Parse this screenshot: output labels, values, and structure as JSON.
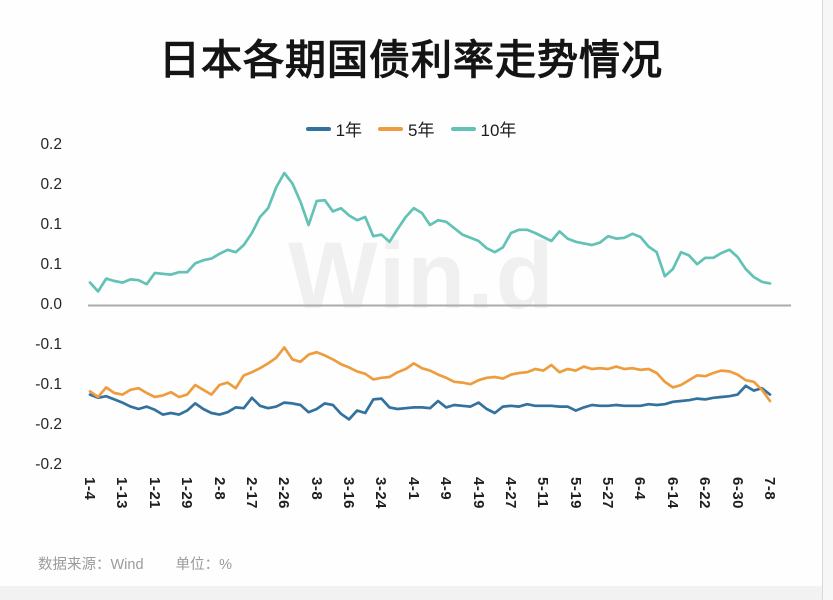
{
  "title": "日本各期国债利率走势情况",
  "watermark": "Win.d",
  "footer": {
    "source": "数据来源：Wind",
    "unit": "单位：%"
  },
  "colors": {
    "axis_line": "#ababab",
    "one_year": "#33719f",
    "five_year": "#ee9d3e",
    "ten_year": "#62c2b5"
  },
  "chart_data": {
    "type": "line",
    "title": "日本各期国债利率走势情况",
    "unit": "%",
    "legend_position": "top-center",
    "grid": "zero-line-only",
    "ylim": [
      -0.21,
      0.21
    ],
    "y_ticks": {
      "values": [
        0.2,
        0.15,
        0.1,
        0.05,
        0.0,
        -0.05,
        -0.1,
        -0.15,
        -0.2
      ],
      "labels": [
        "0.2",
        "0.2",
        "0.1",
        "0.1",
        "0.0",
        "-0.1",
        "-0.1",
        "-0.2",
        "-0.2"
      ]
    },
    "x_tick_labels": [
      "1-4",
      "1-13",
      "1-21",
      "1-29",
      "2-8",
      "2-17",
      "2-26",
      "3-8",
      "3-16",
      "3-24",
      "4-1",
      "4-9",
      "4-19",
      "4-27",
      "5-11",
      "5-19",
      "5-27",
      "6-4",
      "6-14",
      "6-22",
      "6-30",
      "7-8"
    ],
    "series": [
      {
        "name": "1年",
        "color": "#33719f",
        "values": [
          -0.112,
          -0.116,
          -0.114,
          -0.118,
          -0.122,
          -0.127,
          -0.13,
          -0.127,
          -0.131,
          -0.137,
          -0.135,
          -0.137,
          -0.132,
          -0.123,
          -0.13,
          -0.135,
          -0.137,
          -0.134,
          -0.128,
          -0.129,
          -0.116,
          -0.126,
          -0.129,
          -0.127,
          -0.122,
          -0.123,
          -0.125,
          -0.134,
          -0.13,
          -0.123,
          -0.125,
          -0.136,
          -0.143,
          -0.132,
          -0.135,
          -0.118,
          -0.117,
          -0.128,
          -0.13,
          -0.129,
          -0.128,
          -0.128,
          -0.129,
          -0.12,
          -0.128,
          -0.125,
          -0.126,
          -0.127,
          -0.122,
          -0.13,
          -0.135,
          -0.127,
          -0.126,
          -0.127,
          -0.124,
          -0.126,
          -0.126,
          -0.126,
          -0.127,
          -0.127,
          -0.132,
          -0.128,
          -0.125,
          -0.126,
          -0.126,
          -0.125,
          -0.126,
          -0.126,
          -0.126,
          -0.124,
          -0.125,
          -0.124,
          -0.121,
          -0.12,
          -0.119,
          -0.117,
          -0.118,
          -0.116,
          -0.115,
          -0.114,
          -0.112,
          -0.101,
          -0.107,
          -0.104,
          -0.112
        ]
      },
      {
        "name": "5年",
        "color": "#ee9d3e",
        "values": [
          -0.108,
          -0.115,
          -0.103,
          -0.11,
          -0.112,
          -0.106,
          -0.104,
          -0.11,
          -0.115,
          -0.113,
          -0.109,
          -0.115,
          -0.112,
          -0.1,
          -0.106,
          -0.112,
          -0.1,
          -0.097,
          -0.104,
          -0.088,
          -0.084,
          -0.079,
          -0.073,
          -0.066,
          -0.053,
          -0.068,
          -0.071,
          -0.062,
          -0.059,
          -0.063,
          -0.068,
          -0.074,
          -0.078,
          -0.083,
          -0.086,
          -0.093,
          -0.091,
          -0.09,
          -0.084,
          -0.08,
          -0.073,
          -0.079,
          -0.082,
          -0.087,
          -0.091,
          -0.096,
          -0.097,
          -0.099,
          -0.094,
          -0.091,
          -0.09,
          -0.092,
          -0.087,
          -0.085,
          -0.084,
          -0.08,
          -0.082,
          -0.075,
          -0.084,
          -0.08,
          -0.082,
          -0.077,
          -0.08,
          -0.079,
          -0.08,
          -0.077,
          -0.08,
          -0.079,
          -0.081,
          -0.08,
          -0.085,
          -0.096,
          -0.103,
          -0.1,
          -0.094,
          -0.088,
          -0.089,
          -0.085,
          -0.082,
          -0.083,
          -0.087,
          -0.094,
          -0.096,
          -0.106,
          -0.12
        ]
      },
      {
        "name": "10年",
        "color": "#62c2b5",
        "values": [
          0.028,
          0.017,
          0.033,
          0.03,
          0.028,
          0.032,
          0.031,
          0.026,
          0.04,
          0.039,
          0.038,
          0.041,
          0.041,
          0.052,
          0.056,
          0.058,
          0.064,
          0.069,
          0.066,
          0.075,
          0.09,
          0.11,
          0.121,
          0.147,
          0.165,
          0.152,
          0.129,
          0.1,
          0.13,
          0.131,
          0.117,
          0.121,
          0.112,
          0.106,
          0.11,
          0.086,
          0.088,
          0.079,
          0.095,
          0.11,
          0.121,
          0.115,
          0.1,
          0.106,
          0.104,
          0.096,
          0.088,
          0.084,
          0.08,
          0.071,
          0.066,
          0.072,
          0.09,
          0.094,
          0.094,
          0.09,
          0.085,
          0.08,
          0.092,
          0.083,
          0.079,
          0.077,
          0.075,
          0.078,
          0.086,
          0.083,
          0.084,
          0.089,
          0.085,
          0.073,
          0.066,
          0.036,
          0.045,
          0.066,
          0.062,
          0.051,
          0.059,
          0.059,
          0.065,
          0.069,
          0.06,
          0.045,
          0.035,
          0.029,
          0.027
        ]
      }
    ]
  }
}
